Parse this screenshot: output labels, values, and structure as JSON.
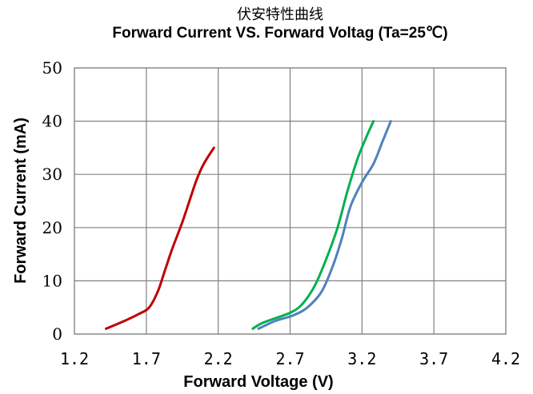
{
  "chart_data": {
    "type": "line",
    "title": "伏安特性曲线",
    "subtitle": "Forward Current VS. Forward Voltag (Ta=25℃)",
    "xlabel": "Forward  Voltage (V)",
    "ylabel": "Forward  Current (mA)",
    "xlim": [
      1.2,
      4.2
    ],
    "ylim": [
      0,
      50
    ],
    "xticks": [
      "1.2",
      "1.7",
      "2.2",
      "2.7",
      "3.2",
      "3.7",
      "4.2"
    ],
    "yticks": [
      "0",
      "10",
      "20",
      "30",
      "40",
      "50"
    ],
    "grid": true,
    "legend": "none",
    "series": [
      {
        "color": "#c00000",
        "points": [
          [
            1.42,
            1
          ],
          [
            1.55,
            2.5
          ],
          [
            1.65,
            3.8
          ],
          [
            1.72,
            5
          ],
          [
            1.78,
            8
          ],
          [
            1.83,
            12
          ],
          [
            1.88,
            16
          ],
          [
            1.95,
            21
          ],
          [
            2.0,
            25
          ],
          [
            2.05,
            29
          ],
          [
            2.1,
            32
          ],
          [
            2.17,
            35
          ]
        ]
      },
      {
        "color": "#00b050",
        "points": [
          [
            2.44,
            1
          ],
          [
            2.5,
            2
          ],
          [
            2.6,
            3
          ],
          [
            2.7,
            4
          ],
          [
            2.78,
            5.5
          ],
          [
            2.87,
            9
          ],
          [
            2.95,
            14
          ],
          [
            3.03,
            20
          ],
          [
            3.1,
            27
          ],
          [
            3.17,
            33
          ],
          [
            3.23,
            37
          ],
          [
            3.28,
            40
          ]
        ]
      },
      {
        "color": "#4f81bd",
        "points": [
          [
            2.48,
            1
          ],
          [
            2.6,
            2.5
          ],
          [
            2.72,
            3.5
          ],
          [
            2.82,
            5
          ],
          [
            2.92,
            8
          ],
          [
            3.0,
            13
          ],
          [
            3.06,
            18
          ],
          [
            3.12,
            24
          ],
          [
            3.2,
            28.5
          ],
          [
            3.28,
            32
          ],
          [
            3.34,
            36
          ],
          [
            3.4,
            40
          ]
        ]
      }
    ]
  }
}
